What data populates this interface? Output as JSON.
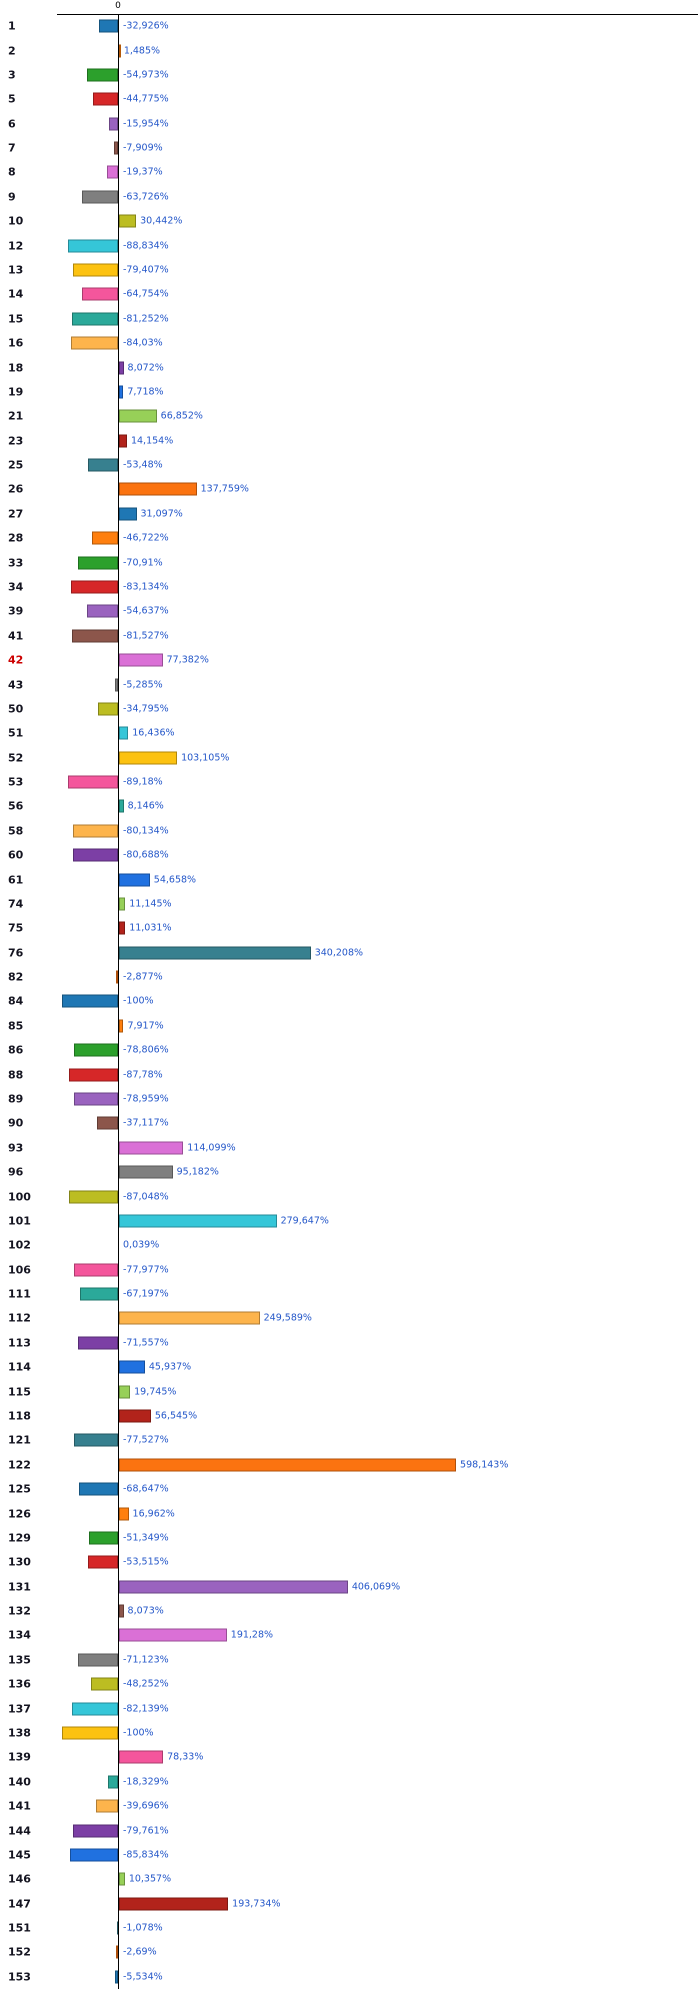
{
  "chart_data": {
    "type": "bar",
    "orientation": "horizontal",
    "title": "",
    "xlabel": "",
    "ylabel": "",
    "grid": false,
    "legend": false,
    "xlim": [
      -100,
      620
    ],
    "zero_axis_label": "0",
    "value_suffix": "%",
    "decimal_separator": ",",
    "categories": [
      "1",
      "2",
      "3",
      "5",
      "6",
      "7",
      "8",
      "9",
      "10",
      "12",
      "13",
      "14",
      "15",
      "16",
      "18",
      "19",
      "21",
      "23",
      "25",
      "26",
      "27",
      "28",
      "33",
      "34",
      "39",
      "41",
      "42",
      "43",
      "50",
      "51",
      "52",
      "53",
      "56",
      "58",
      "60",
      "61",
      "74",
      "75",
      "76",
      "82",
      "84",
      "85",
      "86",
      "88",
      "89",
      "90",
      "93",
      "96",
      "100",
      "101",
      "102",
      "106",
      "111",
      "112",
      "113",
      "114",
      "115",
      "118",
      "121",
      "122",
      "125",
      "126",
      "129",
      "130",
      "131",
      "132",
      "134",
      "135",
      "136",
      "137",
      "138",
      "139",
      "140",
      "141",
      "144",
      "145",
      "146",
      "147",
      "151",
      "152",
      "153"
    ],
    "values": [
      -32.926,
      1.485,
      -54.973,
      -44.775,
      -15.954,
      -7.909,
      -19.37,
      -63.726,
      30.442,
      -88.834,
      -79.407,
      -64.754,
      -81.252,
      -84.03,
      8.072,
      7.718,
      66.852,
      14.154,
      -53.48,
      137.759,
      31.097,
      -46.722,
      -70.91,
      -83.134,
      -54.637,
      -81.527,
      77.382,
      -5.285,
      -34.795,
      16.436,
      103.105,
      -89.18,
      8.146,
      -80.134,
      -80.688,
      54.658,
      11.145,
      11.031,
      340.208,
      -2.877,
      -100,
      7.917,
      -78.806,
      -87.78,
      -78.959,
      -37.117,
      114.099,
      95.182,
      -87.048,
      279.647,
      0.039,
      -77.977,
      -67.197,
      249.589,
      -71.557,
      45.937,
      19.745,
      56.545,
      -77.527,
      598.143,
      -68.647,
      16.962,
      -51.349,
      -53.515,
      406.069,
      8.073,
      191.28,
      -71.123,
      -48.252,
      -82.139,
      -100,
      78.33,
      -18.329,
      -39.696,
      -79.761,
      -85.834,
      10.357,
      193.734,
      -1.078,
      -2.69,
      -5.534
    ],
    "value_labels": [
      "-32,926%",
      "1,485%",
      "-54,973%",
      "-44,775%",
      "-15,954%",
      "-7,909%",
      "-19,37%",
      "-63,726%",
      "30,442%",
      "-88,834%",
      "-79,407%",
      "-64,754%",
      "-81,252%",
      "-84,03%",
      "8,072%",
      "7,718%",
      "66,852%",
      "14,154%",
      "-53,48%",
      "137,759%",
      "31,097%",
      "-46,722%",
      "-70,91%",
      "-83,134%",
      "-54,637%",
      "-81,527%",
      "77,382%",
      "-5,285%",
      "-34,795%",
      "16,436%",
      "103,105%",
      "-89,18%",
      "8,146%",
      "-80,134%",
      "-80,688%",
      "54,658%",
      "11,145%",
      "11,031%",
      "340,208%",
      "-2,877%",
      "-100%",
      "7,917%",
      "-78,806%",
      "-87,78%",
      "-78,959%",
      "-37,117%",
      "114,099%",
      "95,182%",
      "-87,048%",
      "279,647%",
      "0,039%",
      "-77,977%",
      "-67,197%",
      "249,589%",
      "-71,557%",
      "45,937%",
      "19,745%",
      "56,545%",
      "-77,527%",
      "598,143%",
      "-68,647%",
      "16,962%",
      "-51,349%",
      "-53,515%",
      "406,069%",
      "8,073%",
      "191,28%",
      "-71,123%",
      "-48,252%",
      "-82,139%",
      "-100%",
      "78,33%",
      "-18,329%",
      "-39,696%",
      "-79,761%",
      "-85,834%",
      "10,357%",
      "193,734%",
      "-1,078%",
      "-2,69%",
      "-5,534%"
    ],
    "palette": [
      "#1f77b4",
      "#ff7f0e",
      "#2ca02c",
      "#d62728",
      "#9a63bf",
      "#8c564b",
      "#da70d6",
      "#7f7f7f",
      "#bcbd22",
      "#35c6d8",
      "#fcc211",
      "#f4569c",
      "#2ba99a",
      "#fdb44c",
      "#7c3fa5",
      "#2071e0",
      "#97d058",
      "#b2231b",
      "#37808f",
      "#fb7310"
    ],
    "highlight_category": "42",
    "highlight_color": "#cc0000",
    "category_label_color": "#141420",
    "value_label_color": "#2457c9",
    "axis_color": "#000000"
  }
}
